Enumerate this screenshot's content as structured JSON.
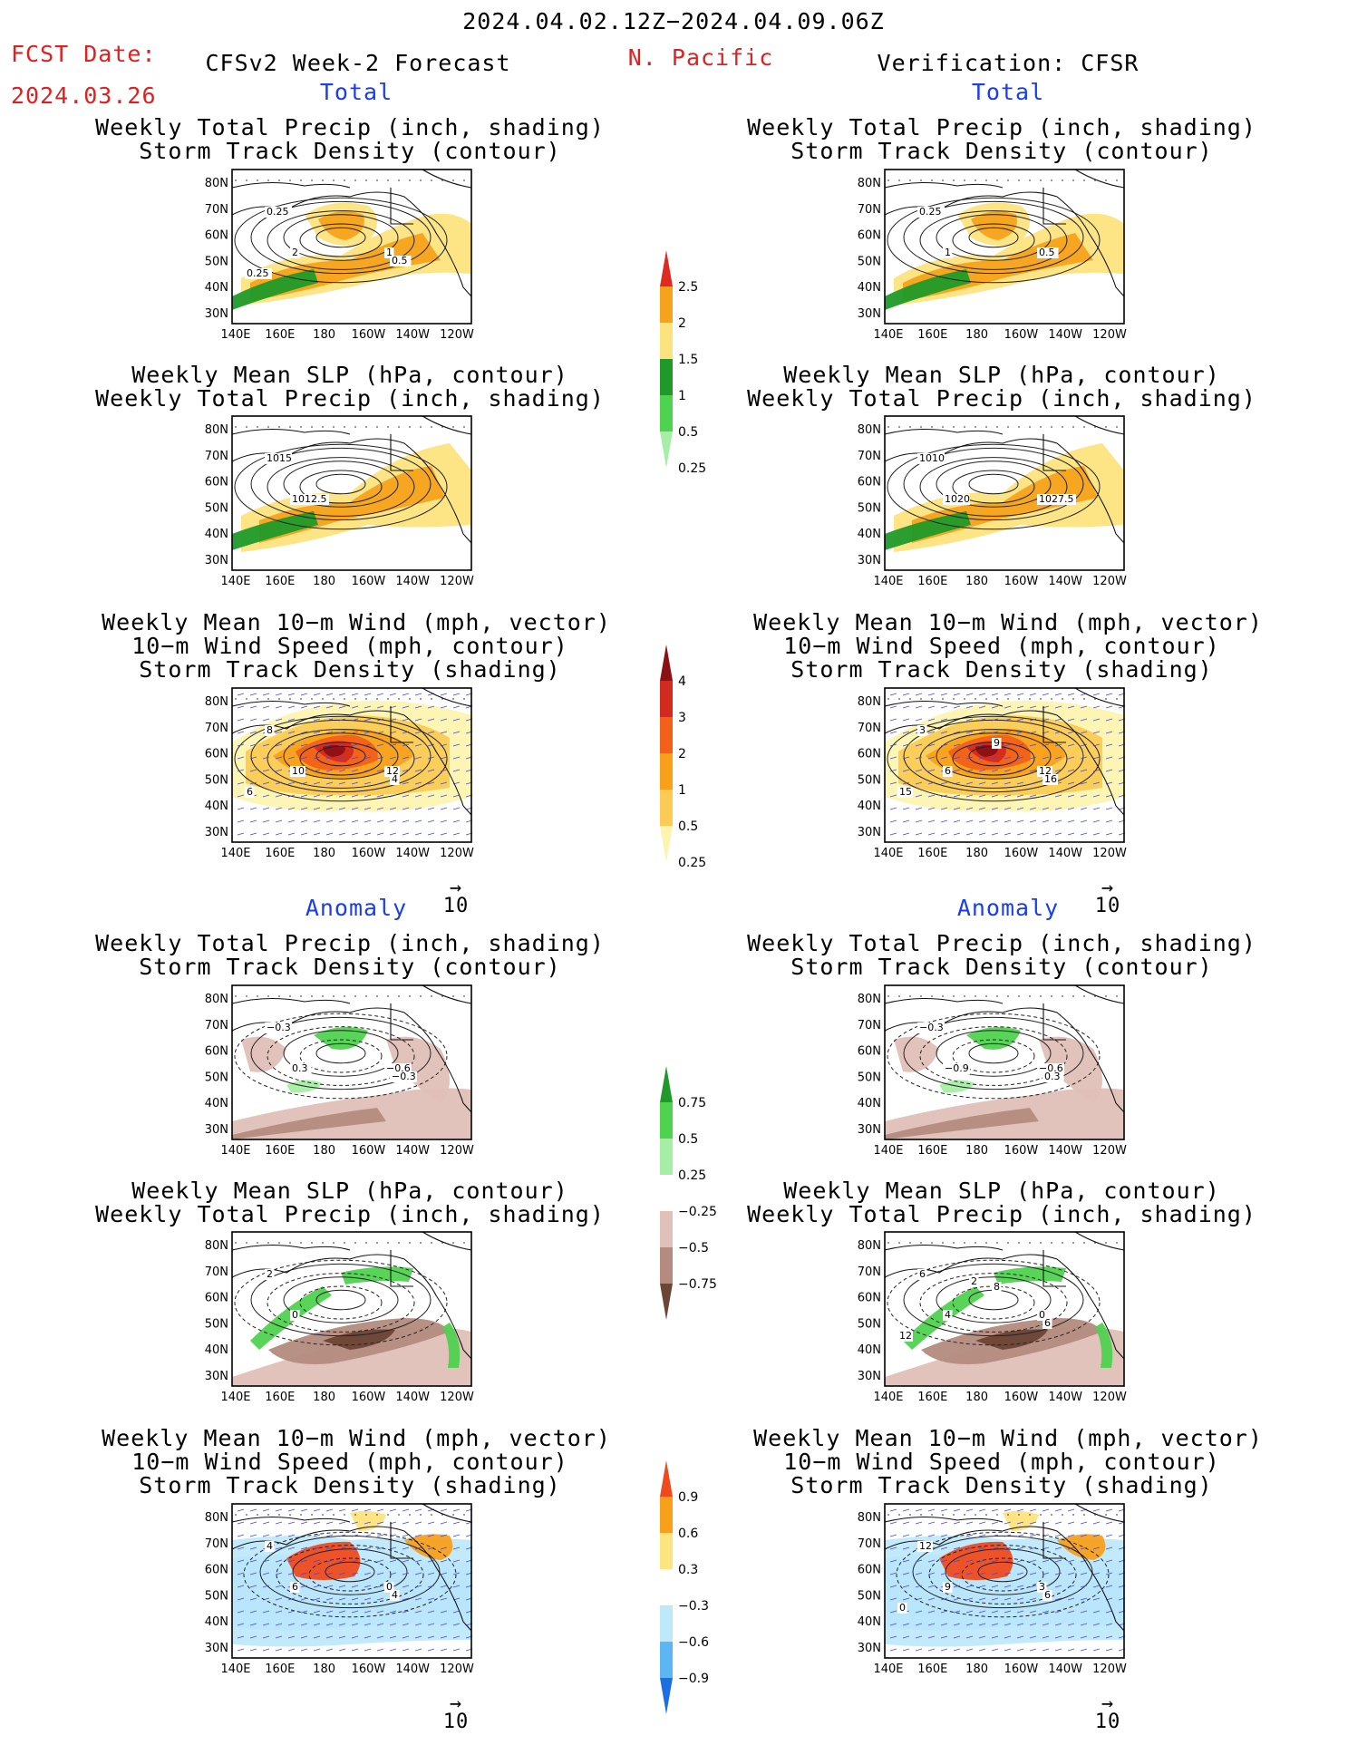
{
  "header": {
    "date_range": "2024.04.02.12Z−2024.04.09.06Z",
    "fcst_date_label": "FCST Date:",
    "fcst_date_value": "2024.03.26",
    "forecast_title": "CFSv2 Week-2 Forecast",
    "region": "N. Pacific",
    "verification_title": "Verification: CFSR"
  },
  "sections": {
    "total_left": "Total",
    "total_right": "Total",
    "anomaly_left": "Anomaly",
    "anomaly_right": "Anomaly"
  },
  "titles": {
    "precip_storm": [
      "Weekly Total Precip (inch, shading)",
      "Storm Track Density (contour)"
    ],
    "slp_precip": [
      "Weekly Mean SLP (hPa, contour)",
      "Weekly Total Precip (inch, shading)"
    ],
    "wind_storm": [
      "Weekly Mean 10−m Wind (mph, vector)",
      "10−m Wind Speed (mph, contour)",
      "Storm Track Density (shading)"
    ]
  },
  "axes": {
    "lat_labels": [
      "80N",
      "70N",
      "60N",
      "50N",
      "40N",
      "30N"
    ],
    "lon_labels": [
      "140E",
      "160E",
      "180",
      "160W",
      "140W",
      "120W"
    ]
  },
  "vector_ref": "10",
  "colorbars": {
    "precip_total": {
      "labels": [
        "2.5",
        "2",
        "1.5",
        "1",
        "0.5",
        "0.25"
      ],
      "colors": [
        "#e02a1f",
        "#f7a21c",
        "#fde37e",
        "#1f9a2a",
        "#4fd24f",
        "#a6eea6"
      ]
    },
    "storm_total": {
      "labels": [
        "4",
        "3",
        "2",
        "1",
        "0.5",
        "0.25"
      ],
      "colors": [
        "#8c0f14",
        "#d42a1e",
        "#f2601a",
        "#f9a01b",
        "#fbcb55",
        "#fdf4b0"
      ]
    },
    "precip_anom": {
      "labels": [
        "0.75",
        "0.5",
        "0.25",
        "−0.25",
        "−0.5",
        "−0.75"
      ],
      "colors": [
        "#1f9a2a",
        "#4fd24f",
        "#a6eea6",
        "#ffffff",
        "#e0c0b8",
        "#b48b7e",
        "#6b4535"
      ]
    },
    "storm_anom": {
      "labels": [
        "0.9",
        "0.6",
        "0.3",
        "−0.3",
        "−0.6",
        "−0.9"
      ],
      "colors": [
        "#ef4a1e",
        "#f8a01c",
        "#fde47e",
        "#ffffff",
        "#bfe9fb",
        "#5cb6f4",
        "#1d6ee0"
      ]
    }
  },
  "contour_labels": {
    "r1l": [
      "0.25",
      "2",
      "1",
      "0.5",
      "0.25"
    ],
    "r1r": [
      "0.25",
      "1",
      "0.5"
    ],
    "r2l": [
      "1015",
      "1012.5"
    ],
    "r2r": [
      "1010",
      "1020",
      "1027.5"
    ],
    "r3l": [
      "8",
      "10",
      "12",
      "4",
      "6"
    ],
    "r3r": [
      "3",
      "6",
      "12",
      "16",
      "15",
      "9"
    ],
    "r4l": [
      "−0.3",
      "0.3",
      "−0.6",
      "−0.3"
    ],
    "r4r": [
      "−0.3",
      "−0.9",
      "−0.6",
      "0.3"
    ],
    "r5l": [
      "2",
      "0"
    ],
    "r5r": [
      "6",
      "4",
      "0",
      "6",
      "12",
      "8",
      "2"
    ],
    "r6l": [
      "4",
      "6",
      "0",
      "4"
    ],
    "r6r": [
      "12",
      "9",
      "3",
      "6",
      "0"
    ]
  }
}
